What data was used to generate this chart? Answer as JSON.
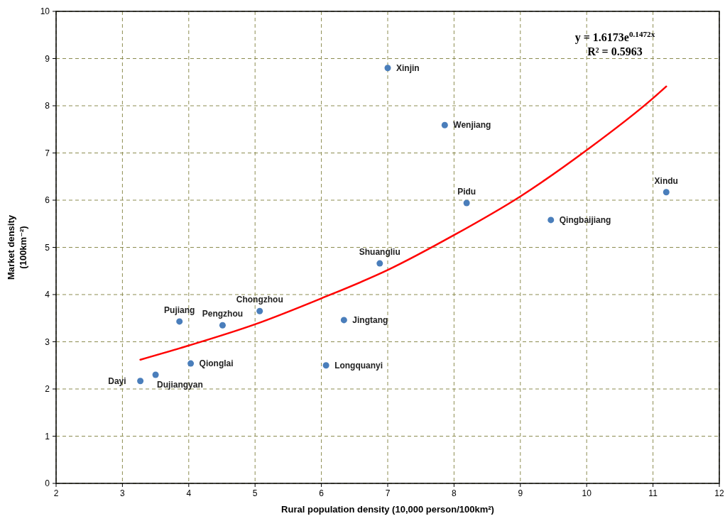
{
  "chart_data": {
    "type": "scatter",
    "xlabel": "Rural population density (10,000 person/100km²)",
    "ylabel": "Market density\n(100km⁻²)",
    "xlim": [
      2,
      12
    ],
    "ylim": [
      0,
      10
    ],
    "xticks": [
      2,
      3,
      4,
      5,
      6,
      7,
      8,
      9,
      10,
      11,
      12
    ],
    "yticks": [
      0,
      1,
      2,
      3,
      4,
      5,
      6,
      7,
      8,
      9,
      10
    ],
    "grid": true,
    "series": [
      {
        "marker": "circle",
        "color": "#4a7ebb",
        "x": [
          3.27,
          3.5,
          4.03,
          3.86,
          4.51,
          5.07,
          6.07,
          6.34,
          6.88,
          7.0,
          7.86,
          8.19,
          9.46,
          11.2
        ],
        "values": [
          2.17,
          2.3,
          2.54,
          3.43,
          3.35,
          3.65,
          2.5,
          3.46,
          4.66,
          8.8,
          7.59,
          5.94,
          5.58,
          6.17
        ]
      },
      {
        "type": "line",
        "color": "#ff0000",
        "x": [
          3.27,
          4,
          5,
          6,
          7,
          8,
          9,
          10,
          11,
          11.2
        ],
        "values": [
          2.62,
          2.92,
          3.37,
          3.92,
          4.52,
          5.26,
          6.08,
          7.06,
          8.16,
          8.41
        ]
      }
    ],
    "annotations": [
      "y = 1.6173e$^{0.1472x}$",
      "R² = 0.5963",
      {
        "text": "Dayi",
        "x": 3.27,
        "y": 2.17
      },
      {
        "text": "Dujiangyan",
        "x": 3.5,
        "y": 2.3
      },
      {
        "text": "Qionglai",
        "x": 4.03,
        "y": 2.54
      },
      {
        "text": "Pujiang",
        "x": 3.86,
        "y": 3.43
      },
      {
        "text": "Pengzhou",
        "x": 4.51,
        "y": 3.35
      },
      {
        "text": "Chongzhou",
        "x": 5.07,
        "y": 3.65
      },
      {
        "text": "Longquanyi",
        "x": 6.07,
        "y": 2.5
      },
      {
        "text": "Jingtang",
        "x": 6.34,
        "y": 3.46
      },
      {
        "text": "Shuangliu",
        "x": 6.88,
        "y": 4.66
      },
      {
        "text": "Xinjin",
        "x": 7.0,
        "y": 8.8
      },
      {
        "text": "Wenjiang",
        "x": 7.86,
        "y": 7.59
      },
      {
        "text": "Pidu",
        "x": 8.19,
        "y": 5.94
      },
      {
        "text": "Qingbaijiang",
        "x": 9.46,
        "y": 5.58
      },
      {
        "text": "Xindu",
        "x": 11.2,
        "y": 6.17
      }
    ]
  }
}
